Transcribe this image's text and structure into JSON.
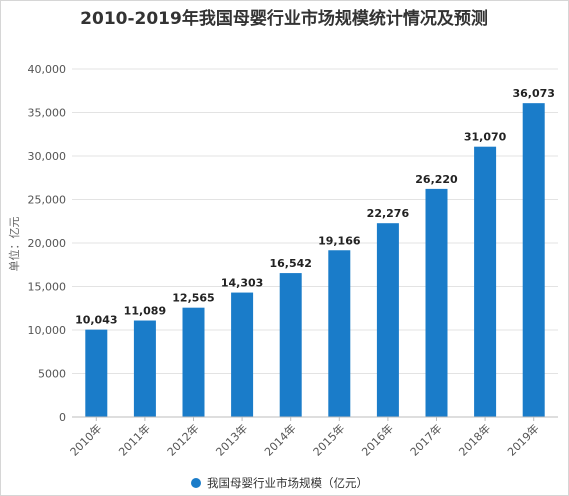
{
  "chart_data": {
    "type": "bar",
    "title": "2010-2019年我国母婴行业市场规模统计情况及预测",
    "ylabel": "单位：亿元",
    "xlabel": "",
    "categories": [
      "2010年",
      "2011年",
      "2012年",
      "2013年",
      "2014年",
      "2015年",
      "2016年",
      "2017年",
      "2018年",
      "2019年"
    ],
    "series": [
      {
        "name": "我国母婴行业市场规模（亿元）",
        "values": [
          10043,
          11089,
          12565,
          14303,
          16542,
          19166,
          22276,
          26220,
          31070,
          36073
        ],
        "value_labels": [
          "10,043",
          "11,089",
          "12,565",
          "14,303",
          "16,542",
          "19,166",
          "22,276",
          "26,220",
          "31,070",
          "36,073"
        ],
        "color": "#1a7cc9"
      }
    ],
    "ylim": [
      0,
      40000
    ],
    "yticks": [
      0,
      5000,
      10000,
      15000,
      20000,
      25000,
      30000,
      35000,
      40000
    ],
    "ytick_labels": [
      "0",
      "5000",
      "10,000",
      "15,000",
      "20,000",
      "25,000",
      "30,000",
      "35,000",
      "40,000"
    ],
    "grid": true,
    "legend_position": "bottom-center"
  }
}
